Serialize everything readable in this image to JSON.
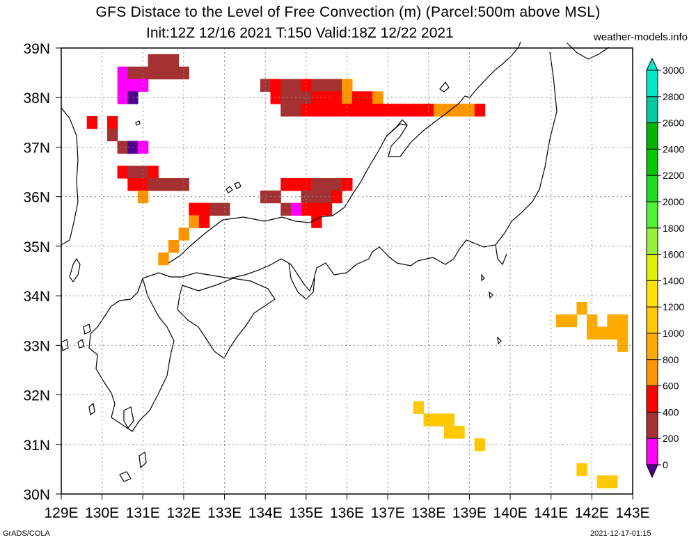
{
  "title": "GFS Distace to the Level of Free Convection (m) (Parcel:500m above MSL)",
  "subtitle": "Init:12Z 12/16 2021 T:150 Valid:18Z 12/22 2021",
  "site": "weather-models.info",
  "footer_left": "GrADS/COLA",
  "footer_right": "2021-12-17-01:15",
  "lat_labels": [
    "39N",
    "38N",
    "37N",
    "36N",
    "35N",
    "34N",
    "33N",
    "32N",
    "31N",
    "30N"
  ],
  "lon_labels": [
    "129E",
    "130E",
    "131E",
    "132E",
    "133E",
    "134E",
    "135E",
    "136E",
    "137E",
    "138E",
    "139E",
    "140E",
    "141E",
    "142E",
    "143E"
  ],
  "colorbar": {
    "labels": [
      "3000",
      "2800",
      "2600",
      "2400",
      "2200",
      "2000",
      "1800",
      "1600",
      "1400",
      "1200",
      "1000",
      "800",
      "600",
      "400",
      "200",
      "0"
    ],
    "colors": [
      "#00e6c8",
      "#00c8a0",
      "#00b400",
      "#00c800",
      "#1edc1e",
      "#50f032",
      "#96f03c",
      "#dcf000",
      "#ffe100",
      "#ffc800",
      "#ffaa00",
      "#ff9600",
      "#ff0000",
      "#a53232",
      "#ff00ff",
      "#50008c"
    ]
  },
  "chart_data": {
    "type": "heatmap",
    "map_region": {
      "lon_range": [
        129,
        143
      ],
      "lat_range": [
        30,
        39
      ]
    },
    "units": "m",
    "levels": [
      0,
      200,
      400,
      600,
      800,
      1000,
      1200,
      1400,
      1600,
      1800,
      2000,
      2200,
      2400,
      2600,
      2800,
      3000
    ],
    "cells": [
      {
        "lon": 131.25,
        "lat": 38.75,
        "level": 400
      },
      {
        "lon": 131.5,
        "lat": 38.75,
        "level": 400
      },
      {
        "lon": 131.75,
        "lat": 38.75,
        "level": 400
      },
      {
        "lon": 130.5,
        "lat": 38.5,
        "level": 200
      },
      {
        "lon": 130.75,
        "lat": 38.5,
        "level": 400
      },
      {
        "lon": 131.0,
        "lat": 38.5,
        "level": 400
      },
      {
        "lon": 131.25,
        "lat": 38.5,
        "level": 400
      },
      {
        "lon": 131.5,
        "lat": 38.5,
        "level": 400
      },
      {
        "lon": 131.75,
        "lat": 38.5,
        "level": 400
      },
      {
        "lon": 132.0,
        "lat": 38.5,
        "level": 400
      },
      {
        "lon": 130.5,
        "lat": 38.25,
        "level": 200
      },
      {
        "lon": 130.75,
        "lat": 38.25,
        "level": 200
      },
      {
        "lon": 131.0,
        "lat": 38.25,
        "level": 200
      },
      {
        "lon": 130.5,
        "lat": 38.0,
        "level": 200
      },
      {
        "lon": 130.75,
        "lat": 38.0,
        "level": 0
      },
      {
        "lon": 134.0,
        "lat": 38.25,
        "level": 400
      },
      {
        "lon": 134.25,
        "lat": 38.25,
        "level": 600
      },
      {
        "lon": 134.5,
        "lat": 38.25,
        "level": 400
      },
      {
        "lon": 134.75,
        "lat": 38.25,
        "level": 400
      },
      {
        "lon": 135.0,
        "lat": 38.25,
        "level": 600
      },
      {
        "lon": 135.25,
        "lat": 38.25,
        "level": 400
      },
      {
        "lon": 135.5,
        "lat": 38.25,
        "level": 400
      },
      {
        "lon": 135.75,
        "lat": 38.25,
        "level": 400
      },
      {
        "lon": 136.0,
        "lat": 38.25,
        "level": 800
      },
      {
        "lon": 134.25,
        "lat": 38.0,
        "level": 600
      },
      {
        "lon": 134.5,
        "lat": 38.0,
        "level": 400
      },
      {
        "lon": 134.75,
        "lat": 38.0,
        "level": 400
      },
      {
        "lon": 135.0,
        "lat": 38.0,
        "level": 400
      },
      {
        "lon": 135.25,
        "lat": 38.0,
        "level": 600
      },
      {
        "lon": 135.5,
        "lat": 38.0,
        "level": 600
      },
      {
        "lon": 135.75,
        "lat": 38.0,
        "level": 600
      },
      {
        "lon": 136.0,
        "lat": 38.0,
        "level": 800
      },
      {
        "lon": 136.25,
        "lat": 38.0,
        "level": 600
      },
      {
        "lon": 136.5,
        "lat": 38.0,
        "level": 600
      },
      {
        "lon": 136.75,
        "lat": 38.0,
        "level": 800
      },
      {
        "lon": 134.5,
        "lat": 37.75,
        "level": 400
      },
      {
        "lon": 134.75,
        "lat": 37.75,
        "level": 400
      },
      {
        "lon": 135.0,
        "lat": 37.75,
        "level": 600
      },
      {
        "lon": 135.25,
        "lat": 37.75,
        "level": 600
      },
      {
        "lon": 135.5,
        "lat": 37.75,
        "level": 600
      },
      {
        "lon": 135.75,
        "lat": 37.75,
        "level": 600
      },
      {
        "lon": 136.0,
        "lat": 37.75,
        "level": 600
      },
      {
        "lon": 136.25,
        "lat": 37.75,
        "level": 600
      },
      {
        "lon": 136.5,
        "lat": 37.75,
        "level": 600
      },
      {
        "lon": 136.75,
        "lat": 37.75,
        "level": 600
      },
      {
        "lon": 137.0,
        "lat": 37.75,
        "level": 600
      },
      {
        "lon": 137.25,
        "lat": 37.75,
        "level": 600
      },
      {
        "lon": 137.5,
        "lat": 37.75,
        "level": 600
      },
      {
        "lon": 137.75,
        "lat": 37.75,
        "level": 600
      },
      {
        "lon": 138.0,
        "lat": 37.75,
        "level": 600
      },
      {
        "lon": 138.25,
        "lat": 37.75,
        "level": 800
      },
      {
        "lon": 138.5,
        "lat": 37.75,
        "level": 800
      },
      {
        "lon": 138.75,
        "lat": 37.75,
        "level": 800
      },
      {
        "lon": 139.0,
        "lat": 37.75,
        "level": 800
      },
      {
        "lon": 139.25,
        "lat": 37.75,
        "level": 600
      },
      {
        "lon": 129.75,
        "lat": 37.5,
        "level": 600
      },
      {
        "lon": 130.25,
        "lat": 37.5,
        "level": 600
      },
      {
        "lon": 130.25,
        "lat": 37.25,
        "level": 400
      },
      {
        "lon": 130.5,
        "lat": 37.0,
        "level": 400
      },
      {
        "lon": 130.75,
        "lat": 37.0,
        "level": 0
      },
      {
        "lon": 131.0,
        "lat": 37.0,
        "level": 200
      },
      {
        "lon": 130.5,
        "lat": 36.5,
        "level": 600
      },
      {
        "lon": 130.75,
        "lat": 36.5,
        "level": 400
      },
      {
        "lon": 131.0,
        "lat": 36.5,
        "level": 400
      },
      {
        "lon": 131.25,
        "lat": 36.5,
        "level": 600
      },
      {
        "lon": 130.75,
        "lat": 36.25,
        "level": 600
      },
      {
        "lon": 131.0,
        "lat": 36.25,
        "level": 600
      },
      {
        "lon": 131.25,
        "lat": 36.25,
        "level": 400
      },
      {
        "lon": 131.5,
        "lat": 36.25,
        "level": 400
      },
      {
        "lon": 131.75,
        "lat": 36.25,
        "level": 400
      },
      {
        "lon": 132.0,
        "lat": 36.25,
        "level": 400
      },
      {
        "lon": 131.0,
        "lat": 36.0,
        "level": 800
      },
      {
        "lon": 132.25,
        "lat": 35.75,
        "level": 600
      },
      {
        "lon": 132.5,
        "lat": 35.75,
        "level": 600
      },
      {
        "lon": 132.75,
        "lat": 35.75,
        "level": 400
      },
      {
        "lon": 133.0,
        "lat": 35.75,
        "level": 400
      },
      {
        "lon": 132.25,
        "lat": 35.5,
        "level": 800
      },
      {
        "lon": 132.5,
        "lat": 35.5,
        "level": 600
      },
      {
        "lon": 132.0,
        "lat": 35.25,
        "level": 800
      },
      {
        "lon": 131.75,
        "lat": 35.0,
        "level": 800
      },
      {
        "lon": 131.5,
        "lat": 34.75,
        "level": 800
      },
      {
        "lon": 134.0,
        "lat": 36.0,
        "level": 400
      },
      {
        "lon": 134.25,
        "lat": 36.0,
        "level": 400
      },
      {
        "lon": 134.5,
        "lat": 36.25,
        "level": 600
      },
      {
        "lon": 134.75,
        "lat": 36.25,
        "level": 600
      },
      {
        "lon": 135.0,
        "lat": 36.25,
        "level": 600
      },
      {
        "lon": 135.25,
        "lat": 36.25,
        "level": 400
      },
      {
        "lon": 135.5,
        "lat": 36.25,
        "level": 400
      },
      {
        "lon": 135.75,
        "lat": 36.25,
        "level": 400
      },
      {
        "lon": 136.0,
        "lat": 36.25,
        "level": 600
      },
      {
        "lon": 135.0,
        "lat": 36.0,
        "level": 400
      },
      {
        "lon": 135.25,
        "lat": 36.0,
        "level": 400
      },
      {
        "lon": 135.5,
        "lat": 36.0,
        "level": 400
      },
      {
        "lon": 135.75,
        "lat": 36.0,
        "level": 600
      },
      {
        "lon": 134.5,
        "lat": 35.75,
        "level": 400
      },
      {
        "lon": 134.75,
        "lat": 35.75,
        "level": 200
      },
      {
        "lon": 135.0,
        "lat": 35.75,
        "level": 600
      },
      {
        "lon": 135.25,
        "lat": 35.75,
        "level": 600
      },
      {
        "lon": 135.5,
        "lat": 35.75,
        "level": 600
      },
      {
        "lon": 135.25,
        "lat": 35.5,
        "level": 600
      },
      {
        "lon": 141.25,
        "lat": 33.5,
        "level": 1000
      },
      {
        "lon": 141.5,
        "lat": 33.5,
        "level": 1000
      },
      {
        "lon": 141.75,
        "lat": 33.75,
        "level": 1000
      },
      {
        "lon": 142.0,
        "lat": 33.5,
        "level": 1000
      },
      {
        "lon": 142.0,
        "lat": 33.25,
        "level": 1000
      },
      {
        "lon": 142.25,
        "lat": 33.25,
        "level": 1000
      },
      {
        "lon": 142.5,
        "lat": 33.25,
        "level": 1000
      },
      {
        "lon": 142.75,
        "lat": 33.25,
        "level": 1000
      },
      {
        "lon": 142.5,
        "lat": 33.5,
        "level": 1000
      },
      {
        "lon": 142.75,
        "lat": 33.5,
        "level": 1000
      },
      {
        "lon": 142.75,
        "lat": 33.0,
        "level": 1000
      },
      {
        "lon": 137.75,
        "lat": 31.75,
        "level": 1200
      },
      {
        "lon": 138.0,
        "lat": 31.5,
        "level": 1200
      },
      {
        "lon": 138.25,
        "lat": 31.5,
        "level": 1200
      },
      {
        "lon": 138.5,
        "lat": 31.5,
        "level": 1200
      },
      {
        "lon": 138.5,
        "lat": 31.25,
        "level": 1200
      },
      {
        "lon": 138.75,
        "lat": 31.25,
        "level": 1200
      },
      {
        "lon": 139.25,
        "lat": 31.0,
        "level": 1200
      },
      {
        "lon": 141.75,
        "lat": 30.5,
        "level": 1200
      },
      {
        "lon": 142.25,
        "lat": 30.25,
        "level": 1200
      },
      {
        "lon": 142.5,
        "lat": 30.25,
        "level": 1200
      }
    ]
  }
}
